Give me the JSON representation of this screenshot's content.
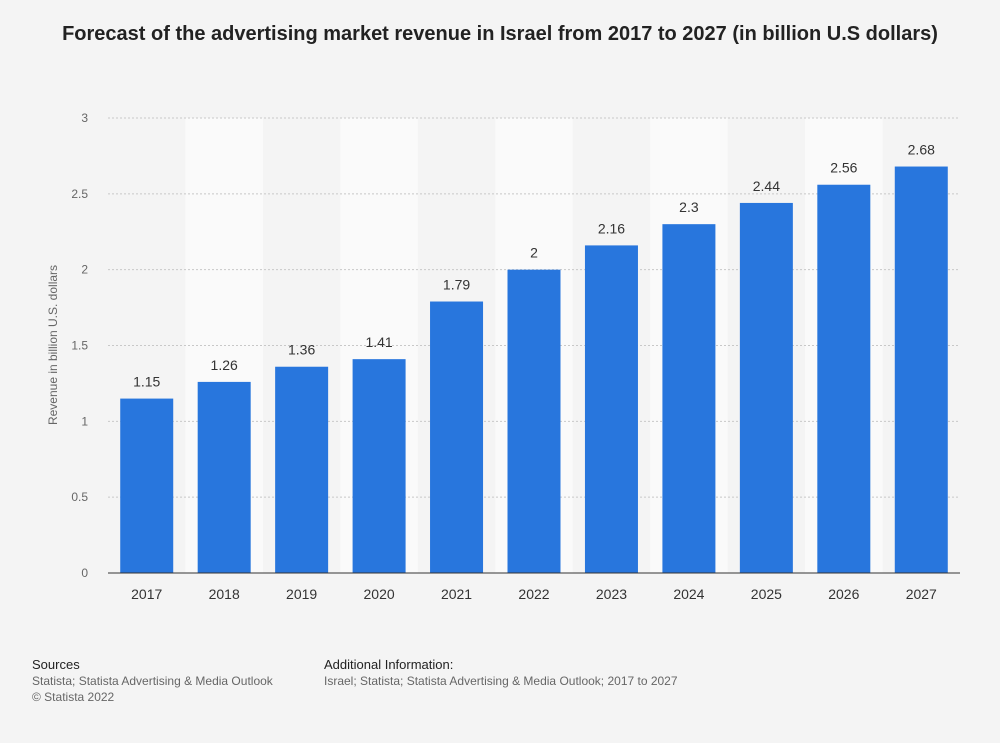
{
  "chart_data": {
    "type": "bar",
    "title": "Forecast of the advertising market revenue in Israel from 2017 to 2027 (in billion U.S dollars)",
    "xlabel": "",
    "ylabel": "Revenue in billion U.S. dollars",
    "categories": [
      "2017",
      "2018",
      "2019",
      "2020",
      "2021",
      "2022",
      "2023",
      "2024",
      "2025",
      "2026",
      "2027"
    ],
    "values": [
      1.15,
      1.26,
      1.36,
      1.41,
      1.79,
      2,
      2.16,
      2.3,
      2.44,
      2.56,
      2.68
    ],
    "value_labels": [
      "1.15",
      "1.26",
      "1.36",
      "1.41",
      "1.79",
      "2",
      "2.16",
      "2.3",
      "2.44",
      "2.56",
      "2.68"
    ],
    "ylim": [
      0,
      3
    ],
    "yticks": [
      "0",
      "0.5",
      "1",
      "1.5",
      "2",
      "2.5",
      "3"
    ],
    "grid": true,
    "bar_color": "#2876dd"
  },
  "footer": {
    "sources_label": "Sources",
    "sources_line1": "Statista; Statista Advertising & Media Outlook",
    "sources_line2": "© Statista 2022",
    "info_label": "Additional Information:",
    "info_text": "Israel; Statista; Statista Advertising & Media Outlook; 2017 to 2027"
  }
}
